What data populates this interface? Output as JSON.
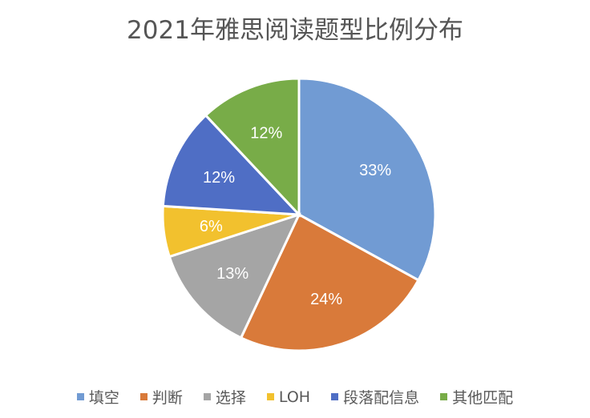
{
  "chart_data": {
    "type": "pie",
    "title": "2021年雅思阅读题型比例分布",
    "legend_position": "bottom",
    "start": "top, clockwise",
    "categories": [
      "填空",
      "判断",
      "选择",
      "LOH",
      "段落配信息",
      "其他匹配"
    ],
    "values": [
      33,
      24,
      13,
      6,
      12,
      12
    ],
    "labels": [
      "33%",
      "24%",
      "13%",
      "6%",
      "12%",
      "12%"
    ],
    "colors": [
      "#719BD3",
      "#D97A3A",
      "#A5A5A5",
      "#F2C12E",
      "#4F6EC5",
      "#78AC48"
    ]
  }
}
